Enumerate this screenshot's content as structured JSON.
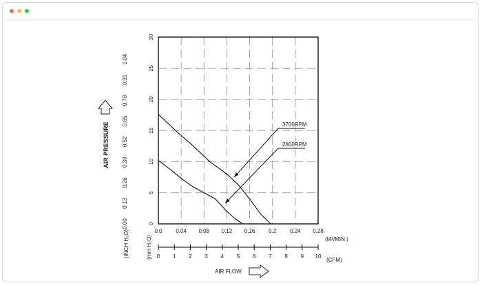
{
  "window": {
    "controls": [
      {
        "name": "close",
        "color": "#ff5f57"
      },
      {
        "name": "minimize",
        "color": "#febc2e"
      },
      {
        "name": "maximize",
        "color": "#28c840"
      }
    ]
  },
  "chart_data": {
    "type": "line",
    "ylabel": "AIR PRESSURE",
    "xlabel": "AIR FLOW",
    "y_unit_mm": "(mm H₂O)",
    "y_unit_inch": "(INCH H₂O)",
    "x_unit_m3": "(M³/MIN.)",
    "x_unit_cfm": "(CFM)",
    "ylim": [
      0,
      30
    ],
    "xlim": [
      0,
      0.28
    ],
    "y_ticks_mm": [
      "0",
      "5",
      "10",
      "15",
      "20",
      "25",
      "30"
    ],
    "y_ticks_inch": [
      "0.00",
      "0.13",
      "0.26",
      "0.39",
      "0.52",
      "0.65",
      "0.78",
      "0.91",
      "1.04"
    ],
    "x_ticks_m3": [
      "0.0",
      "0.04",
      "0.08",
      "0.12",
      "0.16",
      "0.2",
      "0.24",
      "0.28"
    ],
    "x_ticks_cfm": [
      "0",
      "1",
      "2",
      "3",
      "4",
      "5",
      "6",
      "7",
      "8",
      "9",
      "10"
    ],
    "grid": true,
    "series": [
      {
        "name": "3700RPM",
        "x": [
          0.0,
          0.03,
          0.06,
          0.09,
          0.12,
          0.14,
          0.16,
          0.18,
          0.197
        ],
        "y": [
          17.6,
          15.0,
          12.6,
          10.0,
          8.0,
          6.3,
          4.0,
          1.5,
          0.0
        ]
      },
      {
        "name": "2800RPM",
        "x": [
          0.0,
          0.02,
          0.04,
          0.06,
          0.08,
          0.1,
          0.12,
          0.135,
          0.148
        ],
        "y": [
          10.2,
          8.8,
          7.3,
          6.0,
          5.0,
          4.0,
          2.0,
          0.8,
          0.0
        ]
      }
    ]
  }
}
